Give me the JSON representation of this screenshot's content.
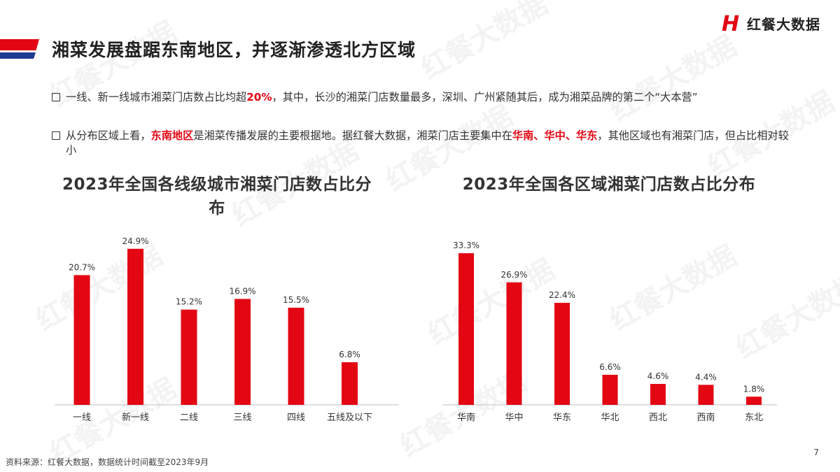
{
  "header": {
    "title": "湘菜发展盘踞东南地区，并逐渐渗透北方区域",
    "brand_mark": "H",
    "brand": "红餐大数据",
    "watermark": "红餐大数据"
  },
  "bullets": [
    {
      "before": "一线、新一线城市湘菜门店数占比均超",
      "highlight": "20%",
      "after": "，其中，长沙的湘菜门店数量最多，深圳、广州紧随其后，成为湘菜品牌的第二个“大本营”"
    },
    {
      "before": "从分布区域上看，",
      "highlight": "东南地区",
      "middle": "是湘菜传播发展的主要根据地。据红餐大数据，湘菜门店主要集中在",
      "highlight2": "华南、华中、华东",
      "after": "，其他区域也有湘菜门店，但占比相对较小"
    }
  ],
  "chart_data": [
    {
      "type": "bar",
      "title": "2023年全国各线级城市湘菜门店数占比分布",
      "categories": [
        "一线",
        "新一线",
        "二线",
        "三线",
        "四线",
        "五线及以下"
      ],
      "values": [
        20.7,
        24.9,
        15.2,
        16.9,
        15.5,
        6.8
      ],
      "value_labels": [
        "20.7%",
        "24.9%",
        "15.2%",
        "16.9%",
        "15.5%",
        "6.8%"
      ],
      "unit": "%",
      "ylim": [
        0,
        28
      ],
      "grid": false,
      "color": "#e30613"
    },
    {
      "type": "bar",
      "title": "2023年全国各区域湘菜门店数占比分布",
      "categories": [
        "华南",
        "华中",
        "华东",
        "华北",
        "西北",
        "西南",
        "东北"
      ],
      "values": [
        33.3,
        26.9,
        22.4,
        6.6,
        4.6,
        4.4,
        1.8
      ],
      "value_labels": [
        "33.3%",
        "26.9%",
        "22.4%",
        "6.6%",
        "4.6%",
        "4.4%",
        "1.8%"
      ],
      "unit": "%",
      "ylim": [
        0,
        35
      ],
      "grid": false,
      "color": "#e30613"
    }
  ],
  "footer": {
    "source": "资料来源：红餐大数据，数据统计时间截至2023年9月",
    "page": "7"
  },
  "colors": {
    "accent": "#e30613",
    "accent_dark": "#1f3a93"
  }
}
